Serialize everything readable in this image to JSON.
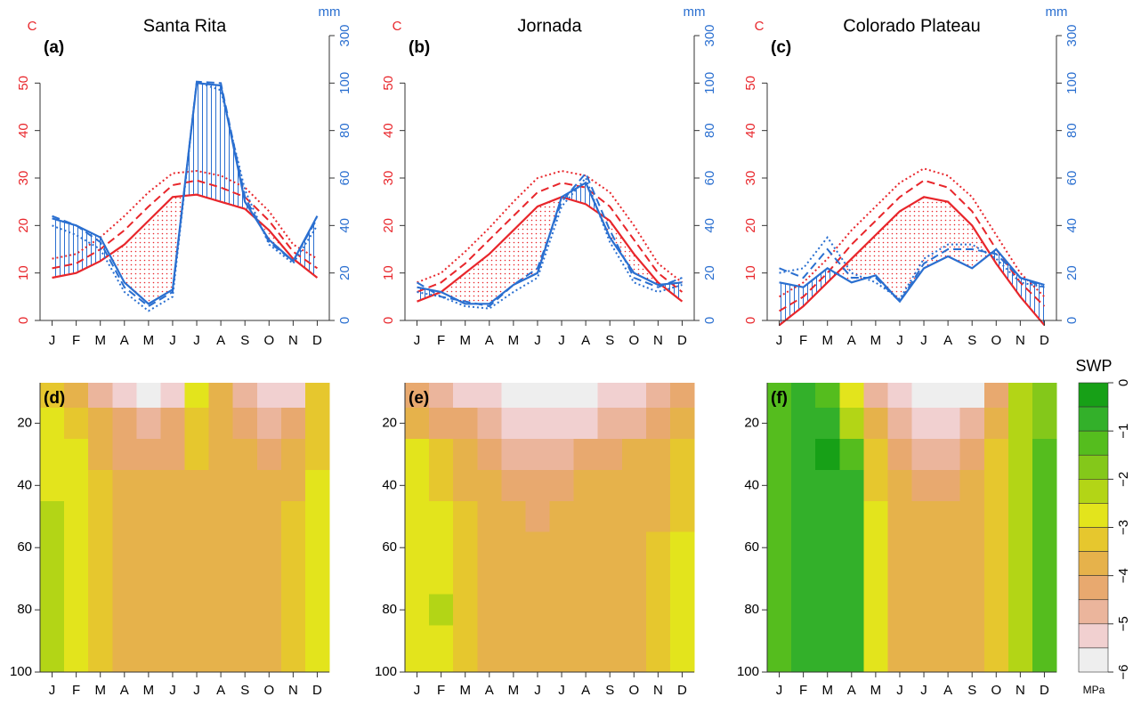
{
  "chart_data": [
    {
      "type": "climate",
      "panel_label": "(a)",
      "title": "Santa Rita",
      "y_label": "C",
      "y2_label": "mm",
      "categories": [
        "J",
        "F",
        "M",
        "A",
        "M",
        "J",
        "J",
        "A",
        "S",
        "O",
        "N",
        "D"
      ],
      "ylim": [
        0,
        60
      ],
      "yticks": [
        0,
        10,
        20,
        30,
        40,
        50
      ],
      "y_color": "#e8262b",
      "y2lim": [
        0,
        300
      ],
      "y2ticks": [
        0,
        20,
        40,
        60,
        80,
        100,
        300
      ],
      "y2_scale": "walter-lieth",
      "y2_color": "#2a6fd0",
      "series": [
        {
          "axis": "y",
          "style": "solid",
          "color": "#e8262b",
          "values": [
            9,
            10,
            12.5,
            16,
            21,
            26,
            26.5,
            25,
            23.5,
            19,
            13,
            9
          ]
        },
        {
          "axis": "y",
          "style": "dashed",
          "color": "#e8262b",
          "values": [
            11,
            12,
            15,
            19,
            24,
            28.5,
            29.5,
            28,
            26,
            21,
            14.5,
            11
          ]
        },
        {
          "axis": "y",
          "style": "dotted",
          "color": "#e8262b",
          "values": [
            13,
            14,
            17.5,
            22,
            27,
            31,
            31.5,
            30.5,
            28,
            23,
            16,
            13
          ]
        },
        {
          "axis": "y2",
          "style": "solid",
          "color": "#2a6fd0",
          "values": [
            43,
            40,
            35,
            16,
            7,
            13,
            100,
            99,
            50,
            34,
            25,
            44
          ]
        },
        {
          "axis": "y2",
          "style": "dashed",
          "color": "#2a6fd0",
          "values": [
            44,
            40,
            33,
            14,
            6,
            12,
            106,
            100,
            52,
            33,
            25,
            43
          ]
        },
        {
          "axis": "y2",
          "style": "dotted",
          "color": "#2a6fd0",
          "values": [
            40,
            36,
            30,
            12,
            4,
            10,
            104,
            97,
            55,
            32,
            24,
            40
          ]
        }
      ]
    },
    {
      "type": "climate",
      "panel_label": "(b)",
      "title": "Jornada",
      "y_label": "C",
      "y2_label": "mm",
      "categories": [
        "J",
        "F",
        "M",
        "A",
        "M",
        "J",
        "J",
        "A",
        "S",
        "O",
        "N",
        "D"
      ],
      "ylim": [
        0,
        60
      ],
      "yticks": [
        0,
        10,
        20,
        30,
        40,
        50
      ],
      "y_color": "#e8262b",
      "y2lim": [
        0,
        300
      ],
      "y2ticks": [
        0,
        20,
        40,
        60,
        80,
        100,
        300
      ],
      "y2_scale": "walter-lieth",
      "y2_color": "#2a6fd0",
      "series": [
        {
          "axis": "y",
          "style": "solid",
          "color": "#e8262b",
          "values": [
            4,
            6,
            10,
            14,
            19,
            24,
            26,
            24.5,
            21,
            14,
            8,
            4
          ]
        },
        {
          "axis": "y",
          "style": "dashed",
          "color": "#e8262b",
          "values": [
            6,
            8,
            12,
            17,
            22,
            27,
            29,
            28,
            24,
            17,
            10,
            6
          ]
        },
        {
          "axis": "y",
          "style": "dotted",
          "color": "#e8262b",
          "values": [
            8,
            10,
            14.5,
            19.5,
            25,
            30,
            31.5,
            30.5,
            27,
            20,
            12,
            8
          ]
        },
        {
          "axis": "y2",
          "style": "solid",
          "color": "#2a6fd0",
          "values": [
            14,
            12,
            7,
            7,
            15,
            20,
            52,
            58,
            35,
            20,
            15,
            16
          ]
        },
        {
          "axis": "y2",
          "style": "dashed",
          "color": "#2a6fd0",
          "values": [
            16,
            10,
            8,
            6,
            15,
            22,
            50,
            62,
            38,
            18,
            14,
            18
          ]
        },
        {
          "axis": "y2",
          "style": "dotted",
          "color": "#2a6fd0",
          "values": [
            12,
            10,
            6,
            5,
            12,
            18,
            48,
            60,
            33,
            16,
            12,
            15
          ]
        }
      ]
    },
    {
      "type": "climate",
      "panel_label": "(c)",
      "title": "Colorado Plateau",
      "y_label": "C",
      "y2_label": "mm",
      "categories": [
        "J",
        "F",
        "M",
        "A",
        "M",
        "J",
        "J",
        "A",
        "S",
        "O",
        "N",
        "D"
      ],
      "ylim": [
        0,
        60
      ],
      "yticks": [
        0,
        10,
        20,
        30,
        40,
        50
      ],
      "y_color": "#e8262b",
      "y2lim": [
        0,
        300
      ],
      "y2ticks": [
        0,
        20,
        40,
        60,
        80,
        100,
        300
      ],
      "y2_scale": "walter-lieth",
      "y2_color": "#2a6fd0",
      "series": [
        {
          "axis": "y",
          "style": "solid",
          "color": "#e8262b",
          "values": [
            -1,
            3,
            8,
            13,
            18,
            23,
            26,
            25,
            20,
            12,
            5,
            -1
          ]
        },
        {
          "axis": "y",
          "style": "dashed",
          "color": "#e8262b",
          "values": [
            2,
            5,
            10,
            16,
            21,
            26,
            29.5,
            28,
            23,
            15,
            8,
            3
          ]
        },
        {
          "axis": "y",
          "style": "dotted",
          "color": "#e8262b",
          "values": [
            5,
            8,
            13,
            19,
            24,
            29,
            32,
            30.5,
            26,
            18,
            10,
            5
          ]
        },
        {
          "axis": "y2",
          "style": "solid",
          "color": "#2a6fd0",
          "values": [
            16,
            14,
            22,
            16,
            19,
            8,
            22,
            27,
            22,
            30,
            18,
            15
          ]
        },
        {
          "axis": "y2",
          "style": "dashed",
          "color": "#2a6fd0",
          "values": [
            22,
            18,
            30,
            18,
            18,
            8,
            24,
            30,
            30,
            28,
            18,
            14
          ]
        },
        {
          "axis": "y2",
          "style": "dotted",
          "color": "#2a6fd0",
          "values": [
            20,
            22,
            35,
            20,
            16,
            9,
            26,
            32,
            32,
            26,
            16,
            14
          ]
        }
      ]
    },
    {
      "type": "contour",
      "panel_label": "(d)",
      "categories": [
        "J",
        "F",
        "M",
        "A",
        "M",
        "J",
        "J",
        "A",
        "S",
        "O",
        "N",
        "D"
      ],
      "depths": [
        10,
        20,
        30,
        40,
        50,
        60,
        70,
        80,
        90,
        100
      ],
      "ylim": [
        7,
        100
      ],
      "y_direction": "down",
      "yticks": [
        20,
        40,
        60,
        80,
        100
      ],
      "values": [
        [
          -3.3,
          -3.6,
          -4.6,
          -5.2,
          -5.6,
          -5.3,
          -2.8,
          -3.5,
          -4.8,
          -5.3,
          -5.2,
          -3.4
        ],
        [
          -2.8,
          -3.2,
          -3.8,
          -4.4,
          -4.7,
          -4.4,
          -3.0,
          -3.6,
          -4.2,
          -4.6,
          -4.3,
          -3.2
        ],
        [
          -2.7,
          -2.9,
          -3.6,
          -4.0,
          -4.2,
          -4.0,
          -3.3,
          -3.7,
          -3.9,
          -4.1,
          -3.8,
          -3.0
        ],
        [
          -2.6,
          -2.8,
          -3.4,
          -3.8,
          -3.9,
          -3.8,
          -3.5,
          -3.7,
          -3.8,
          -3.8,
          -3.6,
          -2.9
        ],
        [
          -2.4,
          -2.8,
          -3.3,
          -3.7,
          -3.8,
          -3.8,
          -3.6,
          -3.7,
          -3.7,
          -3.7,
          -3.4,
          -2.8
        ],
        [
          -2.3,
          -2.7,
          -3.2,
          -3.6,
          -3.8,
          -3.8,
          -3.6,
          -3.7,
          -3.7,
          -3.6,
          -3.3,
          -2.8
        ],
        [
          -2.3,
          -2.6,
          -3.1,
          -3.6,
          -3.8,
          -3.8,
          -3.7,
          -3.7,
          -3.7,
          -3.6,
          -3.2,
          -2.8
        ],
        [
          -2.2,
          -2.6,
          -3.1,
          -3.6,
          -3.8,
          -3.8,
          -3.7,
          -3.7,
          -3.7,
          -3.6,
          -3.2,
          -2.8
        ],
        [
          -2.2,
          -2.6,
          -3.1,
          -3.6,
          -3.8,
          -3.8,
          -3.7,
          -3.7,
          -3.7,
          -3.6,
          -3.2,
          -2.8
        ],
        [
          -2.2,
          -2.7,
          -3.1,
          -3.6,
          -3.8,
          -3.8,
          -3.7,
          -3.7,
          -3.7,
          -3.6,
          -3.2,
          -2.8
        ]
      ]
    },
    {
      "type": "contour",
      "panel_label": "(e)",
      "categories": [
        "J",
        "F",
        "M",
        "A",
        "M",
        "J",
        "J",
        "A",
        "S",
        "O",
        "N",
        "D"
      ],
      "depths": [
        10,
        20,
        30,
        40,
        50,
        60,
        70,
        80,
        90,
        100
      ],
      "ylim": [
        7,
        100
      ],
      "y_direction": "down",
      "yticks": [
        20,
        40,
        60,
        80,
        100
      ],
      "values": [
        [
          -4.2,
          -4.6,
          -5.0,
          -5.2,
          -5.6,
          -5.6,
          -5.6,
          -5.6,
          -5.4,
          -5.2,
          -4.8,
          -4.4
        ],
        [
          -3.6,
          -4.0,
          -4.4,
          -4.7,
          -5.1,
          -5.4,
          -5.3,
          -5.1,
          -4.7,
          -4.5,
          -4.2,
          -3.8
        ],
        [
          -2.9,
          -3.4,
          -3.9,
          -4.2,
          -4.5,
          -4.6,
          -4.5,
          -4.3,
          -4.1,
          -3.9,
          -3.7,
          -3.4
        ],
        [
          -2.8,
          -3.1,
          -3.6,
          -3.8,
          -4.1,
          -4.2,
          -4.1,
          -3.9,
          -3.8,
          -3.7,
          -3.6,
          -3.2
        ],
        [
          -2.7,
          -2.9,
          -3.4,
          -3.7,
          -3.9,
          -4.0,
          -3.9,
          -3.8,
          -3.7,
          -3.6,
          -3.5,
          -3.0
        ],
        [
          -2.7,
          -2.8,
          -3.2,
          -3.6,
          -3.8,
          -3.8,
          -3.8,
          -3.7,
          -3.6,
          -3.6,
          -3.4,
          -2.9
        ],
        [
          -2.7,
          -2.6,
          -3.1,
          -3.6,
          -3.8,
          -3.8,
          -3.8,
          -3.7,
          -3.6,
          -3.6,
          -3.4,
          -2.9
        ],
        [
          -2.7,
          -2.4,
          -3.1,
          -3.6,
          -3.8,
          -3.8,
          -3.8,
          -3.7,
          -3.6,
          -3.6,
          -3.4,
          -2.9
        ],
        [
          -2.8,
          -2.6,
          -3.1,
          -3.6,
          -3.8,
          -3.8,
          -3.8,
          -3.7,
          -3.6,
          -3.6,
          -3.3,
          -2.8
        ],
        [
          -2.8,
          -2.8,
          -3.1,
          -3.5,
          -3.8,
          -3.8,
          -3.8,
          -3.7,
          -3.6,
          -3.6,
          -3.2,
          -2.8
        ]
      ]
    },
    {
      "type": "contour",
      "panel_label": "(f)",
      "categories": [
        "J",
        "F",
        "M",
        "A",
        "M",
        "J",
        "J",
        "A",
        "S",
        "O",
        "N",
        "D"
      ],
      "depths": [
        10,
        20,
        30,
        40,
        50,
        60,
        70,
        80,
        90,
        100
      ],
      "ylim": [
        7,
        100
      ],
      "y_direction": "down",
      "yticks": [
        20,
        40,
        60,
        80,
        100
      ],
      "values": [
        [
          -1.4,
          -0.9,
          -1.0,
          -2.8,
          -4.5,
          -5.3,
          -5.6,
          -5.6,
          -5.5,
          -4.0,
          -2.2,
          -1.8
        ],
        [
          -1.3,
          -0.9,
          -0.7,
          -2.0,
          -3.8,
          -4.8,
          -5.3,
          -5.4,
          -4.9,
          -3.6,
          -2.2,
          -1.5
        ],
        [
          -1.2,
          -0.8,
          -0.4,
          -1.2,
          -3.2,
          -4.2,
          -4.5,
          -4.5,
          -4.2,
          -3.4,
          -2.1,
          -1.4
        ],
        [
          -1.1,
          -0.8,
          -0.5,
          -0.9,
          -3.0,
          -3.9,
          -4.0,
          -4.0,
          -3.9,
          -3.3,
          -2.1,
          -1.4
        ],
        [
          -1.1,
          -0.7,
          -0.8,
          -0.9,
          -2.8,
          -3.8,
          -3.9,
          -3.9,
          -3.8,
          -3.3,
          -2.1,
          -1.4
        ],
        [
          -1.1,
          -0.7,
          -0.8,
          -0.9,
          -2.6,
          -3.8,
          -3.9,
          -3.9,
          -3.8,
          -3.3,
          -2.0,
          -1.4
        ],
        [
          -1.1,
          -0.7,
          -0.8,
          -0.9,
          -2.6,
          -3.8,
          -3.9,
          -3.9,
          -3.8,
          -3.3,
          -2.0,
          -1.4
        ],
        [
          -1.1,
          -0.7,
          -0.8,
          -0.9,
          -2.6,
          -3.8,
          -3.9,
          -3.9,
          -3.8,
          -3.3,
          -2.0,
          -1.4
        ],
        [
          -1.1,
          -0.7,
          -0.8,
          -0.9,
          -2.6,
          -3.8,
          -3.9,
          -3.9,
          -3.8,
          -3.3,
          -2.0,
          -1.4
        ],
        [
          -1.1,
          -0.7,
          -0.8,
          -0.9,
          -2.6,
          -3.8,
          -3.9,
          -3.9,
          -3.8,
          -3.3,
          -2.0,
          -1.4
        ]
      ]
    }
  ],
  "colorbar": {
    "title": "SWP",
    "unit": "MPa",
    "lim": [
      0,
      -6
    ],
    "colors": [
      "#17a017",
      "#33b02a",
      "#55bd1e",
      "#84c81a",
      "#b3d516",
      "#e3e41c",
      "#e6c72e",
      "#e6b24b",
      "#e8a96f",
      "#ebb59c",
      "#f1d0d0",
      "#eeeeee"
    ],
    "ticks": [
      0,
      {
        "value": -1,
        "label": "−1"
      },
      {
        "value": -2,
        "label": "−2"
      },
      {
        "value": -3,
        "label": "−3"
      },
      {
        "value": -4,
        "label": "−4"
      },
      {
        "value": -5,
        "label": "−5"
      },
      {
        "value": -6,
        "label": "−6"
      }
    ]
  }
}
